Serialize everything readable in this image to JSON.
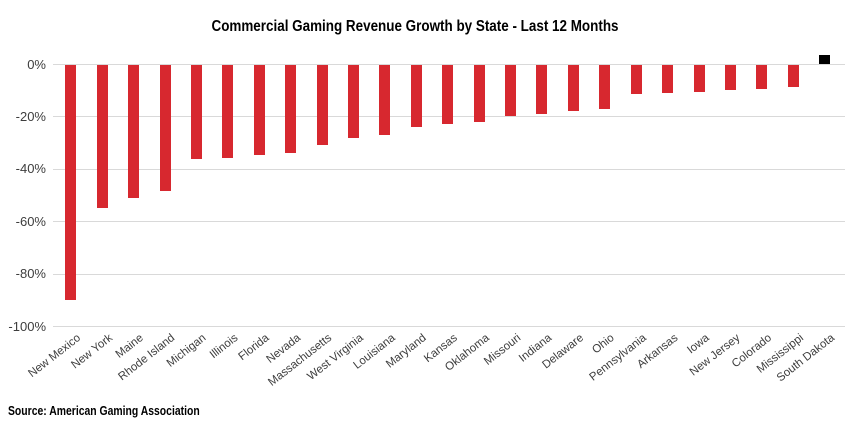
{
  "chart_data": {
    "type": "bar",
    "title": "Commercial Gaming Revenue Growth by State - Last 12 Months",
    "categories": [
      "New Mexico",
      "New York",
      "Maine",
      "Rhode Island",
      "Michigan",
      "Illinois",
      "Florida",
      "Nevada",
      "Massachusetts",
      "West Virginia",
      "Louisiana",
      "Maryland",
      "Kansas",
      "Oklahoma",
      "Missouri",
      "Indiana",
      "Delaware",
      "Ohio",
      "Pennsylvania",
      "Arkansas",
      "Iowa",
      "New Jersey",
      "Colorado",
      "Mississippi",
      "South Dakota"
    ],
    "values": [
      -90,
      -55,
      -51,
      -48.6,
      -36.2,
      -35.7,
      -34.7,
      -34,
      -31,
      -28.2,
      -27.1,
      -24,
      -23,
      -22.3,
      -19.7,
      -19.2,
      -18,
      -17.2,
      -11.3,
      -11.1,
      -10.5,
      -9.9,
      -9.5,
      -8.6,
      3.4
    ],
    "unit": "%",
    "ylabel": "",
    "xlabel": "",
    "y_ticks": [
      "0%",
      "-20%",
      "-40%",
      "-60%",
      "-80%",
      "-100%"
    ],
    "y_tick_values": [
      0,
      -20,
      -40,
      -60,
      -80,
      -100
    ],
    "ylim": [
      -100,
      4
    ],
    "grid": "horizontal",
    "legend": "none",
    "negative_bar_color": "#d7282f",
    "positive_bar_color": "#000000",
    "gridline_color": "#d9d9d9"
  },
  "source": "Source: American Gaming Association"
}
